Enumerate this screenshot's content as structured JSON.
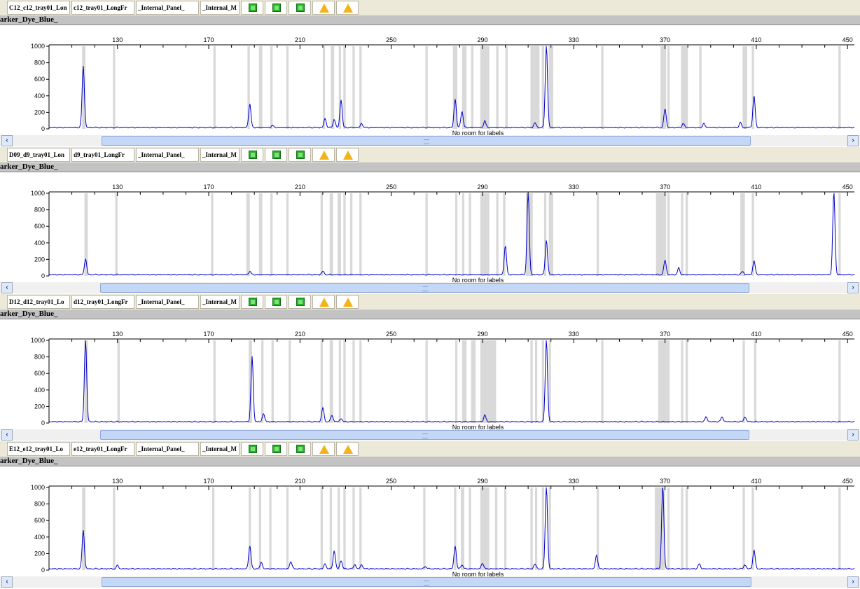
{
  "x_ticks": [
    130,
    170,
    210,
    250,
    290,
    330,
    370,
    410,
    450
  ],
  "y_ticks": [
    0,
    200,
    400,
    600,
    800,
    1000
  ],
  "colors": {
    "trace": "#0000cc",
    "bin": "#d9d9d9",
    "status_ok": "#23b523",
    "status_warn": "#f2b41a"
  },
  "panels": [
    {
      "cells": [
        "C12_c12_tray01_Lon",
        "c12_tray01_LongFr",
        "_Internal_Panel_",
        "_Internal_M"
      ],
      "status_icons": [
        "ok",
        "ok",
        "ok",
        "warn",
        "warn"
      ],
      "dye_label": "arker_Dye_Blue_",
      "overlay_label": "No room for labels"
    },
    {
      "cells": [
        "D09_d9_tray01_Lon",
        "d9_tray01_LongFr",
        "_Internal_Panel_",
        "_Internal_M"
      ],
      "status_icons": [
        "ok",
        "ok",
        "ok",
        "warn",
        "warn"
      ],
      "dye_label": "arker_Dye_Blue_",
      "overlay_label": "No room for labels"
    },
    {
      "cells": [
        "D12_d12_tray01_Lo",
        "d12_tray01_LongFr",
        "_Internal_Panel_",
        "_Internal_M"
      ],
      "status_icons": [
        "ok",
        "ok",
        "ok",
        "warn",
        "warn"
      ],
      "dye_label": "arker_Dye_Blue_",
      "overlay_label": "No room for labels"
    },
    {
      "cells": [
        "E12_e12_tray01_Lo",
        "e12_tray01_LongFr",
        "_Internal_Panel_",
        "_Internal_M"
      ],
      "status_icons": [
        "ok",
        "ok",
        "ok",
        "warn",
        "warn"
      ],
      "dye_label": "arker_Dye_Blue_",
      "overlay_label": "No room for labels"
    }
  ],
  "chart_data": [
    {
      "type": "line",
      "series": [
        {
          "peaks": [
            [
              115,
              750
            ],
            [
              188,
              290
            ],
            [
              198,
              25
            ],
            [
              221,
              110
            ],
            [
              225,
              100
            ],
            [
              228,
              340
            ],
            [
              237,
              50
            ],
            [
              278,
              350
            ],
            [
              281,
              200
            ],
            [
              291,
              80
            ],
            [
              313,
              60
            ],
            [
              318,
              1000
            ],
            [
              370,
              230
            ],
            [
              378,
              50
            ],
            [
              387,
              50
            ],
            [
              403,
              60
            ],
            [
              409,
              390
            ]
          ]
        }
      ],
      "bins": [
        [
          114.5,
          116
        ],
        [
          128,
          129
        ],
        [
          172,
          173
        ],
        [
          187,
          188
        ],
        [
          192,
          193.5
        ],
        [
          197,
          198
        ],
        [
          204,
          205
        ],
        [
          220,
          221
        ],
        [
          223.5,
          225
        ],
        [
          227,
          228
        ],
        [
          229,
          230
        ],
        [
          233,
          234
        ],
        [
          236,
          237
        ],
        [
          265,
          266
        ],
        [
          277,
          279
        ],
        [
          281,
          283
        ],
        [
          285,
          286
        ],
        [
          289,
          293
        ],
        [
          296,
          297
        ],
        [
          300,
          301
        ],
        [
          311,
          315
        ],
        [
          316,
          317
        ],
        [
          319,
          321
        ],
        [
          342,
          343
        ],
        [
          368,
          370.5
        ],
        [
          371,
          372
        ],
        [
          377,
          380
        ],
        [
          385,
          386
        ],
        [
          404,
          406
        ],
        [
          408,
          409
        ],
        [
          446,
          447
        ]
      ],
      "ylim": [
        0,
        1000
      ]
    },
    {
      "type": "line",
      "series": [
        {
          "peaks": [
            [
              116,
              190
            ],
            [
              188,
              40
            ],
            [
              220,
              40
            ],
            [
              300,
              350
            ],
            [
              310,
              1000
            ],
            [
              318,
              420
            ],
            [
              370,
              180
            ],
            [
              376,
              80
            ],
            [
              404,
              40
            ],
            [
              409,
              170
            ],
            [
              444,
              1000
            ]
          ]
        }
      ],
      "bins": [
        [
          115.5,
          117
        ],
        [
          129,
          130
        ],
        [
          171,
          172
        ],
        [
          186.5,
          188
        ],
        [
          192,
          193.5
        ],
        [
          197,
          198
        ],
        [
          204,
          205
        ],
        [
          219,
          220
        ],
        [
          223,
          224.5
        ],
        [
          226.5,
          228
        ],
        [
          229,
          230
        ],
        [
          232,
          233
        ],
        [
          236,
          237
        ],
        [
          265,
          266
        ],
        [
          278,
          279
        ],
        [
          281,
          282
        ],
        [
          284,
          285
        ],
        [
          289,
          293
        ],
        [
          296,
          297
        ],
        [
          299,
          300
        ],
        [
          309,
          312
        ],
        [
          317,
          318
        ],
        [
          319,
          321
        ],
        [
          340,
          341
        ],
        [
          366,
          370.5
        ],
        [
          371,
          372
        ],
        [
          377,
          378
        ],
        [
          379,
          380
        ],
        [
          403,
          405
        ],
        [
          408,
          409
        ],
        [
          446,
          447
        ]
      ],
      "ylim": [
        0,
        1000
      ]
    },
    {
      "type": "line",
      "series": [
        {
          "peaks": [
            [
              116,
              1000
            ],
            [
              189,
              790
            ],
            [
              194,
              100
            ],
            [
              220,
              170
            ],
            [
              224,
              80
            ],
            [
              228,
              40
            ],
            [
              291,
              80
            ],
            [
              318,
              1000
            ],
            [
              388,
              60
            ],
            [
              395,
              60
            ],
            [
              405,
              60
            ]
          ]
        }
      ],
      "bins": [
        [
          115.5,
          117
        ],
        [
          130,
          131
        ],
        [
          172,
          173
        ],
        [
          187.5,
          189
        ],
        [
          193,
          194
        ],
        [
          197.5,
          198.5
        ],
        [
          205,
          206
        ],
        [
          219,
          220
        ],
        [
          223,
          224.5
        ],
        [
          227,
          228
        ],
        [
          229,
          230
        ],
        [
          233,
          234
        ],
        [
          236,
          237
        ],
        [
          265,
          266
        ],
        [
          278,
          279
        ],
        [
          281,
          283
        ],
        [
          285,
          287
        ],
        [
          289,
          296
        ],
        [
          311,
          312
        ],
        [
          313,
          314
        ],
        [
          316,
          317
        ],
        [
          319,
          320
        ],
        [
          342,
          343
        ],
        [
          367,
          371
        ],
        [
          371,
          372
        ],
        [
          377,
          378
        ],
        [
          379,
          380
        ],
        [
          404,
          405
        ],
        [
          409,
          410
        ],
        [
          446,
          447
        ]
      ],
      "ylim": [
        0,
        1000
      ]
    },
    {
      "type": "line",
      "series": [
        {
          "peaks": [
            [
              115,
              470
            ],
            [
              130,
              40
            ],
            [
              188,
              280
            ],
            [
              193,
              80
            ],
            [
              206,
              90
            ],
            [
              221,
              60
            ],
            [
              225,
              220
            ],
            [
              228,
              100
            ],
            [
              234,
              50
            ],
            [
              237,
              50
            ],
            [
              265,
              30
            ],
            [
              278,
              280
            ],
            [
              281,
              50
            ],
            [
              290,
              70
            ],
            [
              313,
              60
            ],
            [
              318,
              1000
            ],
            [
              340,
              170
            ],
            [
              369,
              1000
            ],
            [
              385,
              60
            ],
            [
              405,
              50
            ],
            [
              409,
              230
            ]
          ]
        }
      ],
      "bins": [
        [
          114.5,
          116
        ],
        [
          128,
          129
        ],
        [
          171.5,
          172.5
        ],
        [
          187.5,
          188.5
        ],
        [
          192,
          193
        ],
        [
          196.5,
          197.5
        ],
        [
          204,
          205
        ],
        [
          219,
          220
        ],
        [
          223,
          224
        ],
        [
          226.5,
          227.5
        ],
        [
          229,
          230
        ],
        [
          233,
          234
        ],
        [
          236,
          237
        ],
        [
          264,
          265
        ],
        [
          277.5,
          278.5
        ],
        [
          280.5,
          282
        ],
        [
          284,
          285
        ],
        [
          289,
          293
        ],
        [
          295.5,
          296.5
        ],
        [
          299.5,
          300.5
        ],
        [
          311,
          312
        ],
        [
          313,
          314
        ],
        [
          316,
          317
        ],
        [
          319,
          320
        ],
        [
          340,
          341
        ],
        [
          365.5,
          370
        ],
        [
          371,
          372
        ],
        [
          377,
          378
        ],
        [
          379,
          380
        ],
        [
          404,
          405
        ],
        [
          408,
          409
        ],
        [
          446,
          447
        ]
      ],
      "ylim": [
        0,
        1000
      ]
    }
  ]
}
